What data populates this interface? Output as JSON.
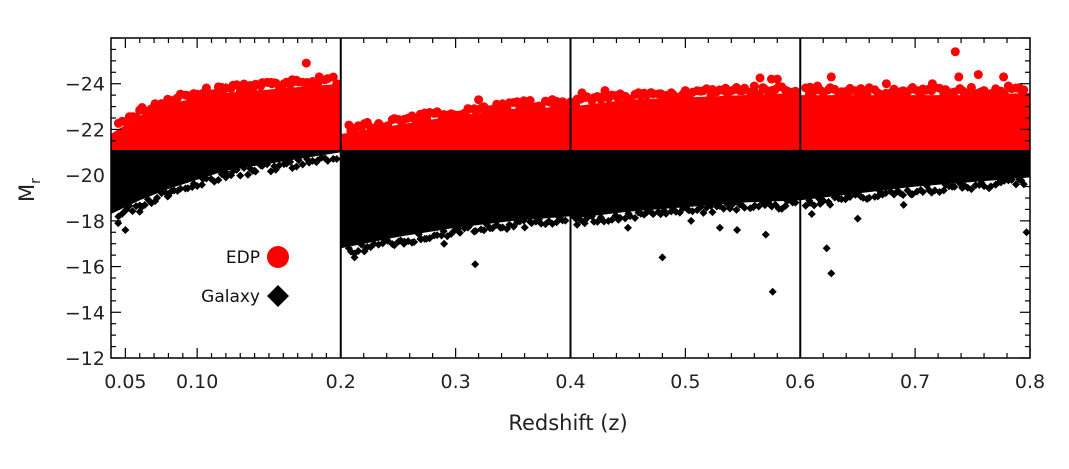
{
  "chart_data": {
    "type": "scatter",
    "title": "",
    "xlabel": "Redshift (z)",
    "ylabel": "M",
    "ylabel_subscript": "r",
    "ylim": [
      -12,
      -26
    ],
    "y_ticks": [
      -24,
      -22,
      -20,
      -18,
      -16,
      -14,
      -12
    ],
    "y_tick_labels": [
      "−24",
      "−22",
      "−20",
      "−18",
      "−16",
      "−14",
      "−12"
    ],
    "panels": [
      {
        "xlim": [
          0.04,
          0.2
        ],
        "x_ticks": [
          0.05,
          0.1
        ],
        "x_tick_labels": [
          "0.05",
          "0.10"
        ],
        "x_minor": [
          0.06,
          0.07,
          0.08,
          0.09,
          0.11,
          0.12,
          0.13,
          0.14,
          0.15,
          0.16,
          0.17,
          0.18,
          0.19
        ]
      },
      {
        "xlim": [
          0.2,
          0.4
        ],
        "x_ticks": [
          0.2,
          0.3
        ],
        "x_tick_labels": [
          "0.2",
          "0.3"
        ],
        "x_minor": [
          0.22,
          0.24,
          0.26,
          0.28,
          0.32,
          0.34,
          0.36,
          0.38
        ]
      },
      {
        "xlim": [
          0.4,
          0.6
        ],
        "x_ticks": [
          0.4,
          0.5
        ],
        "x_tick_labels": [
          "0.4",
          "0.5"
        ],
        "x_minor": [
          0.42,
          0.44,
          0.46,
          0.48,
          0.52,
          0.54,
          0.56,
          0.58
        ]
      },
      {
        "xlim": [
          0.6,
          0.8
        ],
        "x_ticks": [
          0.6,
          0.7,
          0.8
        ],
        "x_tick_labels": [
          "0.6",
          "0.7",
          "0.8"
        ],
        "x_minor": [
          0.62,
          0.64,
          0.66,
          0.68,
          0.72,
          0.74,
          0.76,
          0.78
        ]
      }
    ],
    "series": [
      {
        "name": "EDP",
        "marker": "circle",
        "color": "#ff0000",
        "description_threshold_Mr": -21.1,
        "upper_envelope": [
          {
            "panel": 0,
            "x": [
              0.04,
              0.06,
              0.08,
              0.1,
              0.12,
              0.14,
              0.16,
              0.18,
              0.2
            ],
            "y": [
              -21.8,
              -22.6,
              -23.1,
              -23.4,
              -23.6,
              -23.7,
              -23.8,
              -23.9,
              -24.0
            ]
          },
          {
            "panel": 1,
            "x": [
              0.2,
              0.25,
              0.3,
              0.35,
              0.4
            ],
            "y": [
              -21.8,
              -22.2,
              -22.6,
              -22.9,
              -23.0
            ]
          },
          {
            "panel": 2,
            "x": [
              0.4,
              0.45,
              0.5,
              0.55,
              0.6
            ],
            "y": [
              -23.0,
              -23.3,
              -23.4,
              -23.5,
              -23.6
            ]
          },
          {
            "panel": 3,
            "x": [
              0.6,
              0.65,
              0.7,
              0.75,
              0.8
            ],
            "y": [
              -23.5,
              -23.5,
              -23.5,
              -23.5,
              -23.6
            ]
          }
        ],
        "outliers": [
          [
            0.176,
            -24.9
          ],
          [
            0.185,
            -24.3
          ],
          [
            0.168,
            -24.1
          ],
          [
            0.152,
            -24.0
          ],
          [
            0.13,
            -23.9
          ],
          [
            0.32,
            -23.3
          ],
          [
            0.4,
            -23.2
          ],
          [
            0.385,
            -23.1
          ],
          [
            0.575,
            -24.2
          ],
          [
            0.58,
            -24.2
          ],
          [
            0.565,
            -24.25
          ],
          [
            0.56,
            -23.9
          ],
          [
            0.535,
            -23.8
          ],
          [
            0.5,
            -23.7
          ],
          [
            0.47,
            -23.6
          ],
          [
            0.43,
            -23.7
          ],
          [
            0.41,
            -23.6
          ],
          [
            0.735,
            -25.4
          ],
          [
            0.755,
            -24.4
          ],
          [
            0.738,
            -24.3
          ],
          [
            0.777,
            -24.3
          ],
          [
            0.715,
            -24.0
          ],
          [
            0.675,
            -24.0
          ],
          [
            0.627,
            -24.3
          ],
          [
            0.66,
            -23.8
          ],
          [
            0.615,
            -23.9
          ],
          [
            0.79,
            -23.8
          ],
          [
            0.76,
            -23.7
          ]
        ]
      },
      {
        "name": "Galaxy",
        "marker": "diamond",
        "color": "#000000",
        "lower_envelope": [
          {
            "panel": 0,
            "x": [
              0.04,
              0.06,
              0.08,
              0.1,
              0.12,
              0.14,
              0.16,
              0.18,
              0.2
            ],
            "y": [
              -18.3,
              -18.9,
              -19.4,
              -19.8,
              -20.2,
              -20.4,
              -20.6,
              -20.8,
              -21.0
            ]
          },
          {
            "panel": 1,
            "x": [
              0.2,
              0.25,
              0.3,
              0.35,
              0.4
            ],
            "y": [
              -16.8,
              -17.3,
              -17.7,
              -18.0,
              -18.2
            ]
          },
          {
            "panel": 2,
            "x": [
              0.4,
              0.45,
              0.5,
              0.55,
              0.6
            ],
            "y": [
              -18.1,
              -18.4,
              -18.6,
              -18.8,
              -18.9
            ]
          },
          {
            "panel": 3,
            "x": [
              0.6,
              0.65,
              0.7,
              0.75,
              0.8
            ],
            "y": [
              -18.9,
              -19.2,
              -19.5,
              -19.7,
              -19.9
            ]
          }
        ],
        "outliers": [
          [
            0.045,
            -17.9
          ],
          [
            0.05,
            -17.6
          ],
          [
            0.06,
            -18.4
          ],
          [
            0.08,
            -19.1
          ],
          [
            0.12,
            -19.9
          ],
          [
            0.14,
            -20.2
          ],
          [
            0.212,
            -16.4
          ],
          [
            0.222,
            -16.8
          ],
          [
            0.27,
            -17.2
          ],
          [
            0.317,
            -16.1
          ],
          [
            0.29,
            -17.0
          ],
          [
            0.255,
            -17.0
          ],
          [
            0.48,
            -16.4
          ],
          [
            0.576,
            -14.9
          ],
          [
            0.45,
            -17.7
          ],
          [
            0.505,
            -18.0
          ],
          [
            0.53,
            -17.7
          ],
          [
            0.545,
            -17.6
          ],
          [
            0.57,
            -17.4
          ],
          [
            0.627,
            -15.7
          ],
          [
            0.623,
            -16.8
          ],
          [
            0.797,
            -17.5
          ],
          [
            0.65,
            -18.1
          ],
          [
            0.69,
            -18.7
          ],
          [
            0.61,
            -18.3
          ]
        ]
      }
    ],
    "legend": {
      "placement": "lower-left of first panel",
      "entries": [
        {
          "label": "EDP",
          "marker": "circle",
          "color": "#ff0000"
        },
        {
          "label": "Galaxy",
          "marker": "diamond",
          "color": "#000000"
        }
      ]
    },
    "grid": false
  }
}
